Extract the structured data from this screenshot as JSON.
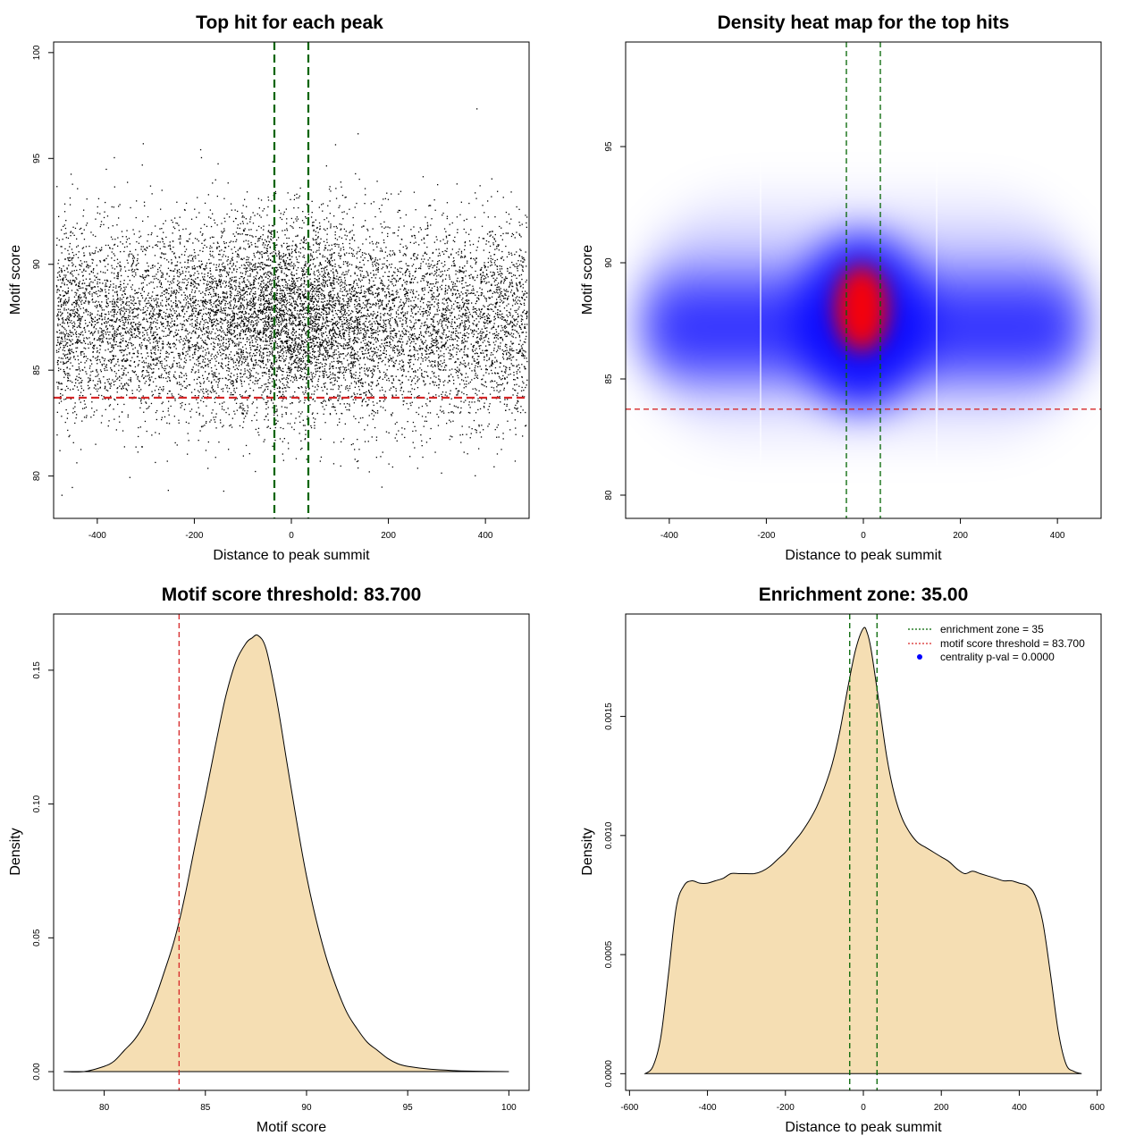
{
  "chart_data": [
    {
      "type": "scatter",
      "title": "Top hit for each peak",
      "xlabel": "Distance to peak summit",
      "ylabel": "Motif score",
      "xlim": [
        -490,
        490
      ],
      "ylim": [
        78,
        100.5
      ],
      "xticks": [
        -400,
        -200,
        0,
        200,
        400
      ],
      "yticks": [
        80,
        85,
        90,
        95,
        100
      ],
      "xtick_labels": [
        "-400",
        "-200",
        "0",
        "200",
        "400"
      ],
      "ytick_labels": [
        "80",
        "85",
        "90",
        "95",
        "100"
      ],
      "hlines": [
        {
          "y": 83.7,
          "color": "#d62728",
          "style": "dashed"
        }
      ],
      "vlines": [
        {
          "x": -35,
          "color": "#006400",
          "style": "dashed"
        },
        {
          "x": 35,
          "color": "#006400",
          "style": "dashed"
        }
      ],
      "points_description": "dense cloud of black points (one per peak), x uniform in [-485, 485], y centered near 87.3 with spread ~2.3, denser near x = 0"
    },
    {
      "type": "heatmap",
      "title": "Density heat map for the top hits",
      "xlabel": "Distance to peak summit",
      "ylabel": "Motif score",
      "xlim": [
        -490,
        490
      ],
      "ylim": [
        79,
        99.5
      ],
      "xticks": [
        -400,
        -200,
        0,
        200,
        400
      ],
      "yticks": [
        80,
        85,
        90,
        95
      ],
      "xtick_labels": [
        "-400",
        "-200",
        "0",
        "200",
        "400"
      ],
      "ytick_labels": [
        "80",
        "85",
        "90",
        "95"
      ],
      "hot_spot": {
        "x": 0,
        "y": 88
      },
      "colors": [
        "#ffffff",
        "#0000ff",
        "#ff0000"
      ],
      "hlines": [
        {
          "y": 83.7,
          "color": "#d62728",
          "style": "dashed"
        }
      ],
      "vlines": [
        {
          "x": -35,
          "color": "#006400",
          "style": "dashed"
        },
        {
          "x": 35,
          "color": "#006400",
          "style": "dashed"
        }
      ]
    },
    {
      "type": "area",
      "title": "Motif score threshold: 83.700",
      "xlabel": "Motif score",
      "ylabel": "Density",
      "xlim": [
        77.5,
        101
      ],
      "ylim": [
        -0.007,
        0.171
      ],
      "xticks": [
        80,
        85,
        90,
        95,
        100
      ],
      "yticks": [
        0.0,
        0.05,
        0.1,
        0.15
      ],
      "xtick_labels": [
        "80",
        "85",
        "90",
        "95",
        "100"
      ],
      "ytick_labels": [
        "0.00",
        "0.05",
        "0.10",
        "0.15"
      ],
      "fill": "#f5deb3",
      "x": [
        78.0,
        79.0,
        80.0,
        80.5,
        81.0,
        81.5,
        82.0,
        82.5,
        83.0,
        83.5,
        84.0,
        84.5,
        85.0,
        85.5,
        86.0,
        86.5,
        87.0,
        87.3,
        87.6,
        88.0,
        88.5,
        89.0,
        89.5,
        90.0,
        90.5,
        91.0,
        91.5,
        92.0,
        92.5,
        93.0,
        93.5,
        94.0,
        94.5,
        95.0,
        96.0,
        97.0,
        98.0,
        100.0
      ],
      "y": [
        0.0,
        0.0,
        0.002,
        0.004,
        0.008,
        0.012,
        0.018,
        0.027,
        0.038,
        0.05,
        0.066,
        0.085,
        0.103,
        0.122,
        0.14,
        0.153,
        0.16,
        0.162,
        0.163,
        0.158,
        0.14,
        0.117,
        0.094,
        0.073,
        0.056,
        0.042,
        0.031,
        0.022,
        0.016,
        0.011,
        0.008,
        0.005,
        0.003,
        0.002,
        0.001,
        0.0005,
        0.0002,
        0.0
      ],
      "vlines": [
        {
          "x": 83.7,
          "color": "#d62728",
          "style": "dashed"
        }
      ]
    },
    {
      "type": "area",
      "title": "Enrichment zone: 35.00",
      "xlabel": "Distance to peak summit",
      "ylabel": "Density",
      "xlim": [
        -610,
        610
      ],
      "ylim": [
        -7e-05,
        0.00193
      ],
      "xticks": [
        -600,
        -400,
        -200,
        0,
        200,
        400,
        600
      ],
      "yticks": [
        0.0,
        0.0005,
        0.001,
        0.0015
      ],
      "xtick_labels": [
        "-600",
        "-400",
        "-200",
        "0",
        "200",
        "400",
        "600"
      ],
      "ytick_labels": [
        "0.0000",
        "0.0005",
        "0.0010",
        "0.0015"
      ],
      "fill": "#f5deb3",
      "x": [
        -560,
        -540,
        -520,
        -500,
        -480,
        -460,
        -440,
        -420,
        -400,
        -380,
        -360,
        -340,
        -320,
        -300,
        -280,
        -260,
        -240,
        -220,
        -200,
        -180,
        -160,
        -140,
        -120,
        -100,
        -80,
        -60,
        -40,
        -20,
        0,
        10,
        20,
        40,
        60,
        80,
        100,
        120,
        140,
        160,
        180,
        200,
        220,
        240,
        260,
        280,
        300,
        320,
        340,
        360,
        380,
        400,
        420,
        440,
        460,
        480,
        500,
        520,
        540,
        560
      ],
      "y": [
        0.0,
        3e-05,
        0.00015,
        0.00042,
        0.0007,
        0.00079,
        0.00081,
        0.0008,
        0.0008,
        0.00081,
        0.00082,
        0.00084,
        0.00084,
        0.00084,
        0.00084,
        0.00085,
        0.00087,
        0.0009,
        0.00093,
        0.00097,
        0.00101,
        0.00106,
        0.00112,
        0.0012,
        0.0013,
        0.00144,
        0.00162,
        0.00178,
        0.00187,
        0.00185,
        0.00178,
        0.00156,
        0.00133,
        0.00117,
        0.00107,
        0.00101,
        0.00097,
        0.00095,
        0.00093,
        0.00091,
        0.00089,
        0.00086,
        0.00084,
        0.00085,
        0.00084,
        0.00083,
        0.00082,
        0.00081,
        0.00081,
        0.0008,
        0.00079,
        0.00075,
        0.00064,
        0.00042,
        0.00018,
        4e-05,
        1e-05,
        0.0
      ],
      "vlines": [
        {
          "x": -35,
          "color": "#006400",
          "style": "dashed"
        },
        {
          "x": 35,
          "color": "#006400",
          "style": "dashed"
        }
      ],
      "legend": {
        "placement": "top-right",
        "entries": [
          {
            "label": "enrichment zone = 35",
            "color": "#006400",
            "marker": "dotted-line"
          },
          {
            "label": "motif score threshold = 83.700",
            "color": "#d62728",
            "marker": "dotted-line"
          },
          {
            "label": "centrality p-val = 0.0000",
            "color": "#0000ff",
            "marker": "dot"
          }
        ]
      }
    }
  ]
}
